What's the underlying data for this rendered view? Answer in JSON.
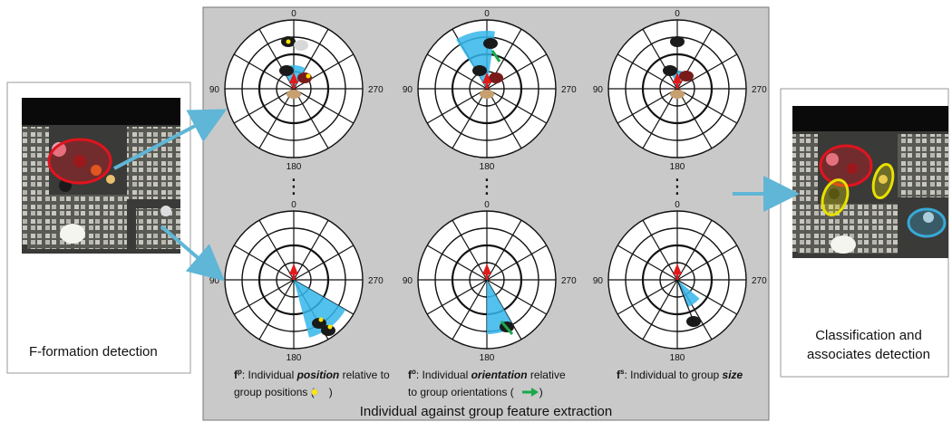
{
  "left_panel": {
    "caption": "F-formation detection"
  },
  "center_panel": {
    "caption": "Individual against group feature extraction"
  },
  "right_panel": {
    "caption_line1": "Classification and",
    "caption_line2": "associates detection"
  },
  "polar_labels": {
    "top": "0",
    "left": "90",
    "right": "270",
    "bottom": "180"
  },
  "ellipsis": "⋮",
  "features": [
    {
      "symbol": "f",
      "sup": "p",
      "pre": ": Individual ",
      "em": "position",
      "post": " relative to",
      "line2": "group positions (",
      "line2_end": ")"
    },
    {
      "symbol": "f",
      "sup": "o",
      "pre": ": Individual ",
      "em": "orientation",
      "post": " relative",
      "line2": "to group orientations (",
      "line2_end": ")"
    },
    {
      "symbol": "f",
      "sup": "s",
      "pre": ": Individual to group ",
      "em": "size",
      "post": "",
      "line2": "",
      "line2_end": ""
    }
  ],
  "colors": {
    "panel_bg": "#c9c9c9",
    "arrow": "#5fb6d6",
    "wedge": "#34b6ea",
    "red_marker": "#e21a1a",
    "green_marker": "#1aa84a",
    "yellow_marker": "#ffe600",
    "group_ellipse": "#e0141e",
    "associate_ellipse": "#e8e000",
    "other_ellipse": "#39a9d6"
  }
}
